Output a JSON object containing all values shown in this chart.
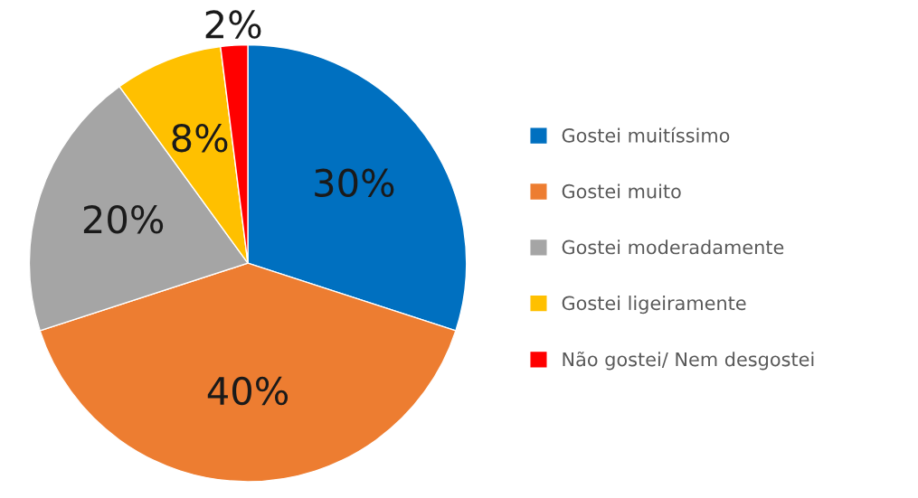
{
  "chart_data": {
    "type": "pie",
    "categories": [
      "Gostei muitíssimo",
      "Gostei muito",
      "Gostei moderadamente",
      "Gostei ligeiramente",
      "Não gostei/ Nem desgostei"
    ],
    "values": [
      30,
      40,
      20,
      8,
      2
    ],
    "colors": [
      "#0070c0",
      "#ed7d31",
      "#a5a5a5",
      "#ffc000",
      "#ff0000"
    ],
    "value_labels": [
      "30%",
      "40%",
      "20%",
      "8%",
      "2%"
    ],
    "legend": "right"
  }
}
